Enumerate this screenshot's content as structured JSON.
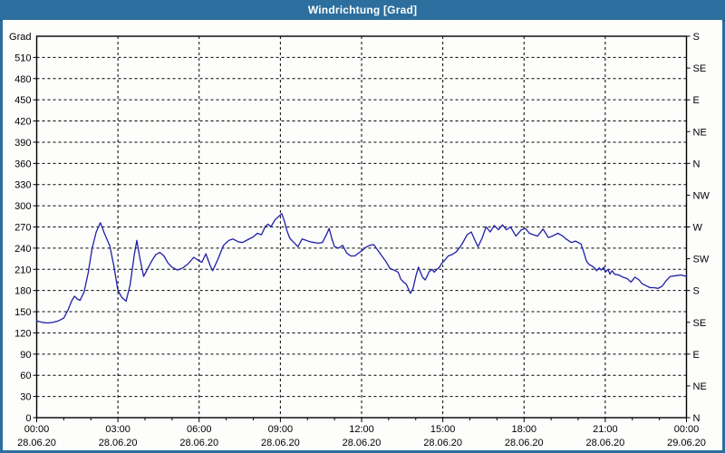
{
  "window": {
    "title": "Windrichtung [Grad]"
  },
  "colors": {
    "titlebar": "#2C6E9E",
    "frame": "#000000",
    "grid": "#000000",
    "text": "#000000",
    "panel": "#FDFDFC",
    "line": "#1F1FA6"
  },
  "chart_data": {
    "type": "line",
    "title": "Windrichtung [Grad]",
    "grid": "dashed",
    "legend": "none",
    "ylim": [
      0,
      540
    ],
    "xlim_hours": [
      0,
      24
    ],
    "y_axis_left": {
      "unit_label": "Grad",
      "tick_step": 30,
      "ticks": [
        0,
        30,
        60,
        90,
        120,
        150,
        180,
        210,
        240,
        270,
        300,
        330,
        360,
        390,
        420,
        450,
        480,
        510
      ]
    },
    "y_axis_right": {
      "ticks": [
        {
          "deg": 0,
          "label": "N"
        },
        {
          "deg": 45,
          "label": "NE"
        },
        {
          "deg": 90,
          "label": "E"
        },
        {
          "deg": 135,
          "label": "SE"
        },
        {
          "deg": 180,
          "label": "S"
        },
        {
          "deg": 225,
          "label": "SW"
        },
        {
          "deg": 270,
          "label": "W"
        },
        {
          "deg": 315,
          "label": "NW"
        },
        {
          "deg": 360,
          "label": "N"
        },
        {
          "deg": 405,
          "label": "NE"
        },
        {
          "deg": 450,
          "label": "E"
        },
        {
          "deg": 495,
          "label": "SE"
        },
        {
          "deg": 540,
          "label": "S"
        }
      ]
    },
    "x_axis": {
      "minor_tick_hours": 1,
      "major_ticks": [
        {
          "hour": 0,
          "time": "00:00",
          "date": "28.06.20"
        },
        {
          "hour": 3,
          "time": "03:00",
          "date": "28.06.20"
        },
        {
          "hour": 6,
          "time": "06:00",
          "date": "28.06.20"
        },
        {
          "hour": 9,
          "time": "09:00",
          "date": "28.06.20"
        },
        {
          "hour": 12,
          "time": "12:00",
          "date": "28.06.20"
        },
        {
          "hour": 15,
          "time": "15:00",
          "date": "28.06.20"
        },
        {
          "hour": 18,
          "time": "18:00",
          "date": "28.06.20"
        },
        {
          "hour": 21,
          "time": "21:00",
          "date": "28.06.20"
        },
        {
          "hour": 24,
          "time": "00:00",
          "date": "29.06.20"
        }
      ]
    },
    "series": [
      {
        "name": "Windrichtung",
        "color": "#1F1FA6",
        "points": [
          [
            0.0,
            137
          ],
          [
            0.2,
            135
          ],
          [
            0.4,
            134
          ],
          [
            0.6,
            135
          ],
          [
            0.8,
            137
          ],
          [
            1.0,
            141
          ],
          [
            1.15,
            152
          ],
          [
            1.3,
            166
          ],
          [
            1.4,
            172
          ],
          [
            1.5,
            168
          ],
          [
            1.6,
            166
          ],
          [
            1.75,
            178
          ],
          [
            1.9,
            205
          ],
          [
            2.05,
            240
          ],
          [
            2.2,
            263
          ],
          [
            2.35,
            276
          ],
          [
            2.5,
            261
          ],
          [
            2.6,
            252
          ],
          [
            2.7,
            243
          ],
          [
            2.85,
            215
          ],
          [
            3.0,
            180
          ],
          [
            3.15,
            170
          ],
          [
            3.3,
            165
          ],
          [
            3.45,
            188
          ],
          [
            3.6,
            230
          ],
          [
            3.7,
            251
          ],
          [
            3.8,
            228
          ],
          [
            3.95,
            200
          ],
          [
            4.1,
            211
          ],
          [
            4.25,
            222
          ],
          [
            4.4,
            231
          ],
          [
            4.55,
            234
          ],
          [
            4.7,
            229
          ],
          [
            4.85,
            219
          ],
          [
            5.0,
            213
          ],
          [
            5.2,
            209
          ],
          [
            5.4,
            212
          ],
          [
            5.6,
            218
          ],
          [
            5.8,
            227
          ],
          [
            6.0,
            222
          ],
          [
            6.1,
            220
          ],
          [
            6.25,
            232
          ],
          [
            6.4,
            216
          ],
          [
            6.5,
            208
          ],
          [
            6.7,
            225
          ],
          [
            6.9,
            244
          ],
          [
            7.1,
            251
          ],
          [
            7.25,
            253
          ],
          [
            7.45,
            249
          ],
          [
            7.6,
            248
          ],
          [
            7.8,
            252
          ],
          [
            8.0,
            256
          ],
          [
            8.15,
            261
          ],
          [
            8.3,
            259
          ],
          [
            8.45,
            271
          ],
          [
            8.55,
            274
          ],
          [
            8.65,
            270
          ],
          [
            8.8,
            280
          ],
          [
            9.0,
            287
          ],
          [
            9.05,
            289
          ],
          [
            9.15,
            278
          ],
          [
            9.25,
            264
          ],
          [
            9.35,
            254
          ],
          [
            9.5,
            248
          ],
          [
            9.65,
            242
          ],
          [
            9.8,
            253
          ],
          [
            9.95,
            251
          ],
          [
            10.1,
            249
          ],
          [
            10.25,
            248
          ],
          [
            10.4,
            247
          ],
          [
            10.55,
            248
          ],
          [
            10.7,
            259
          ],
          [
            10.8,
            268
          ],
          [
            10.9,
            254
          ],
          [
            11.0,
            242
          ],
          [
            11.15,
            240
          ],
          [
            11.3,
            244
          ],
          [
            11.45,
            233
          ],
          [
            11.6,
            229
          ],
          [
            11.75,
            229
          ],
          [
            11.85,
            232
          ],
          [
            12.0,
            236
          ],
          [
            12.15,
            241
          ],
          [
            12.3,
            244
          ],
          [
            12.45,
            245
          ],
          [
            12.6,
            237
          ],
          [
            12.75,
            229
          ],
          [
            12.9,
            221
          ],
          [
            13.05,
            211
          ],
          [
            13.2,
            209
          ],
          [
            13.35,
            206
          ],
          [
            13.45,
            196
          ],
          [
            13.55,
            192
          ],
          [
            13.65,
            189
          ],
          [
            13.8,
            176
          ],
          [
            13.9,
            183
          ],
          [
            14.0,
            200
          ],
          [
            14.1,
            213
          ],
          [
            14.25,
            199
          ],
          [
            14.35,
            195
          ],
          [
            14.5,
            207
          ],
          [
            14.6,
            210
          ],
          [
            14.68,
            206
          ],
          [
            14.78,
            210
          ],
          [
            14.88,
            213
          ],
          [
            14.95,
            218
          ],
          [
            15.05,
            222
          ],
          [
            15.2,
            229
          ],
          [
            15.35,
            231
          ],
          [
            15.5,
            235
          ],
          [
            15.7,
            245
          ],
          [
            15.9,
            259
          ],
          [
            16.05,
            263
          ],
          [
            16.2,
            250
          ],
          [
            16.3,
            242
          ],
          [
            16.45,
            254
          ],
          [
            16.6,
            270
          ],
          [
            16.75,
            263
          ],
          [
            16.9,
            272
          ],
          [
            17.05,
            266
          ],
          [
            17.2,
            273
          ],
          [
            17.35,
            266
          ],
          [
            17.5,
            270
          ],
          [
            17.7,
            257
          ],
          [
            17.9,
            266
          ],
          [
            18.05,
            268
          ],
          [
            18.2,
            261
          ],
          [
            18.35,
            259
          ],
          [
            18.5,
            257
          ],
          [
            18.7,
            267
          ],
          [
            18.9,
            255
          ],
          [
            19.05,
            257
          ],
          [
            19.25,
            261
          ],
          [
            19.4,
            258
          ],
          [
            19.55,
            253
          ],
          [
            19.75,
            248
          ],
          [
            19.9,
            250
          ],
          [
            20.1,
            246
          ],
          [
            20.2,
            235
          ],
          [
            20.3,
            222
          ],
          [
            20.4,
            217
          ],
          [
            20.5,
            215
          ],
          [
            20.6,
            212
          ],
          [
            20.68,
            208
          ],
          [
            20.78,
            212
          ],
          [
            20.85,
            209
          ],
          [
            20.95,
            213
          ],
          [
            21.0,
            206
          ],
          [
            21.1,
            210
          ],
          [
            21.17,
            203
          ],
          [
            21.25,
            208
          ],
          [
            21.35,
            203
          ],
          [
            21.5,
            202
          ],
          [
            21.65,
            199
          ],
          [
            21.8,
            197
          ],
          [
            21.95,
            192
          ],
          [
            22.1,
            199
          ],
          [
            22.25,
            195
          ],
          [
            22.35,
            190
          ],
          [
            22.5,
            187
          ],
          [
            22.65,
            184
          ],
          [
            22.8,
            184
          ],
          [
            22.95,
            183
          ],
          [
            23.1,
            186
          ],
          [
            23.25,
            194
          ],
          [
            23.4,
            200
          ],
          [
            23.6,
            201
          ],
          [
            23.8,
            202
          ],
          [
            24.0,
            200
          ]
        ]
      }
    ]
  }
}
